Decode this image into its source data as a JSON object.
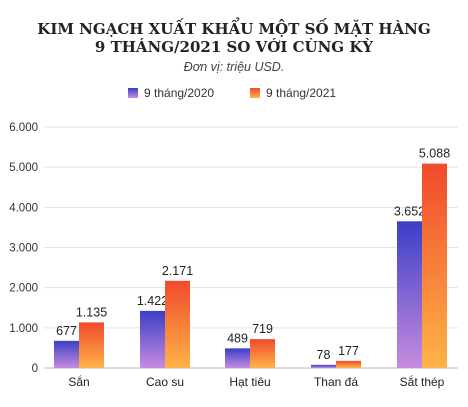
{
  "chart_data": {
    "type": "bar",
    "title_lines": [
      "KIM NGẠCH XUẤT KHẨU MỘT SỐ MẶT HÀNG",
      "9 THÁNG/2021 SO VỚI CÙNG KỲ"
    ],
    "subtitle": "Đơn vị: triệu USD.",
    "categories": [
      "Sắn",
      "Cao su",
      "Hạt tiêu",
      "Than đá",
      "Sắt thép"
    ],
    "series": [
      {
        "name": "9 tháng/2020",
        "values": [
          677,
          1422,
          489,
          78,
          3652
        ],
        "labels": [
          "677",
          "1.422",
          "489",
          "78",
          "3.652"
        ],
        "color_top": "#3b3fc6",
        "color_bottom": "#c78be0"
      },
      {
        "name": "9 tháng/2021",
        "values": [
          1135,
          2171,
          719,
          177,
          5088
        ],
        "labels": [
          "1.135",
          "2.171",
          "719",
          "177",
          "5.088"
        ],
        "color_top": "#f04a2c",
        "color_bottom": "#ffb347"
      }
    ],
    "yticks": [
      "0",
      "1.000",
      "2.000",
      "3.000",
      "4.000",
      "5.000",
      "6.000"
    ],
    "ylim": [
      0,
      6000
    ],
    "grid": true,
    "legend_position": "top-center"
  }
}
